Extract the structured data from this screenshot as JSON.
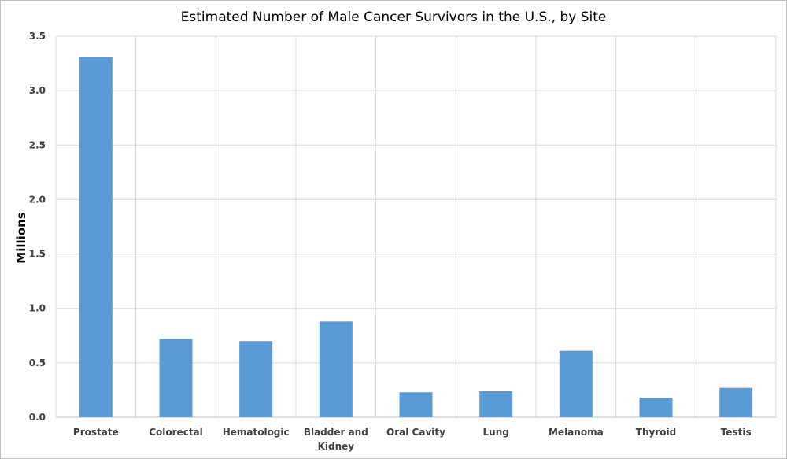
{
  "chart_data": {
    "type": "bar",
    "title": "Estimated Number of Male Cancer Survivors in the U.S., by Site",
    "xlabel": "",
    "ylabel": "Millions",
    "ylim": [
      0,
      3.5
    ],
    "yticks": [
      0.0,
      0.5,
      1.0,
      1.5,
      2.0,
      2.5,
      3.0,
      3.5
    ],
    "ytick_labels": [
      "0.0",
      "0.5",
      "1.0",
      "1.5",
      "2.0",
      "2.5",
      "3.0",
      "3.5"
    ],
    "categories": [
      [
        "Prostate"
      ],
      [
        "Colorectal"
      ],
      [
        "Hematologic"
      ],
      [
        "Bladder and",
        "Kidney"
      ],
      [
        "Oral Cavity"
      ],
      [
        "Lung"
      ],
      [
        "Melanoma"
      ],
      [
        "Thyroid"
      ],
      [
        "Testis"
      ]
    ],
    "values": [
      3.31,
      0.72,
      0.7,
      0.88,
      0.23,
      0.24,
      0.61,
      0.18,
      0.27
    ],
    "bar_color": "#5b9bd5",
    "grid": true,
    "legend": "none"
  }
}
